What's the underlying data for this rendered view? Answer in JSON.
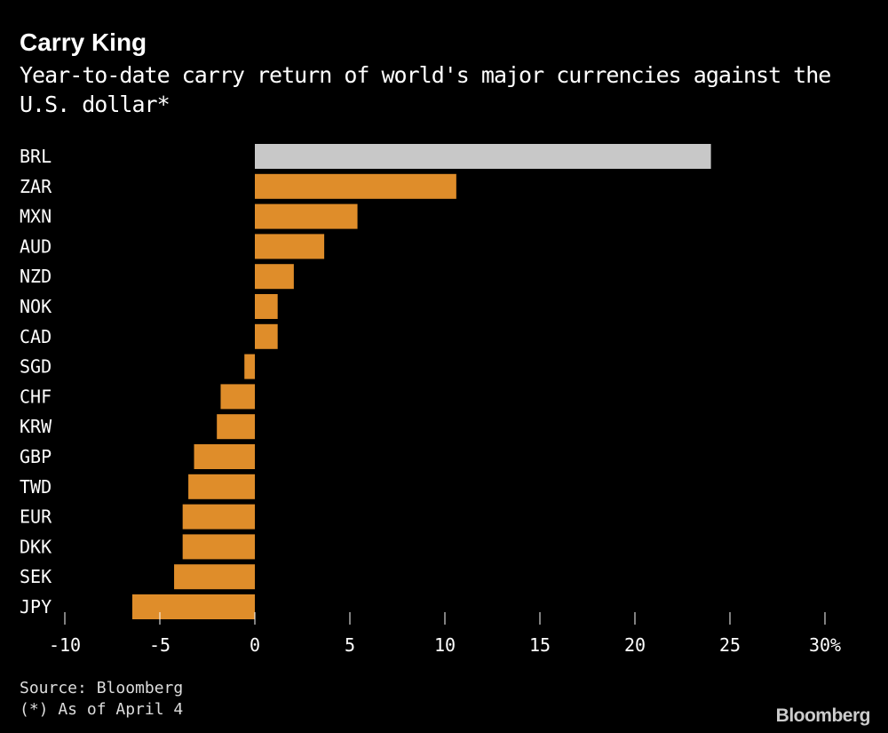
{
  "chart_data": {
    "type": "bar",
    "orientation": "horizontal",
    "title": "Carry King",
    "subtitle": "Year-to-date carry return of world's major currencies against the U.S. dollar*",
    "categories": [
      "BRL",
      "ZAR",
      "MXN",
      "AUD",
      "NZD",
      "NOK",
      "CAD",
      "SGD",
      "CHF",
      "KRW",
      "GBP",
      "TWD",
      "EUR",
      "DKK",
      "SEK",
      "JPY"
    ],
    "values": [
      24.0,
      10.6,
      5.4,
      3.65,
      2.05,
      1.2,
      1.2,
      -0.55,
      -1.8,
      -2.0,
      -3.2,
      -3.5,
      -3.8,
      -3.8,
      -4.25,
      -6.45
    ],
    "highlight": "BRL",
    "colors": {
      "highlight": "#c8c8c8",
      "default": "#df8d2a"
    },
    "xlim": [
      -10,
      30
    ],
    "xticks": [
      "-10",
      "-5",
      "0",
      "5",
      "10",
      "15",
      "20",
      "25",
      "30%"
    ],
    "grid": false,
    "source": "Source: Bloomberg",
    "note": "(*) As of April 4"
  },
  "brand": "Bloomberg"
}
